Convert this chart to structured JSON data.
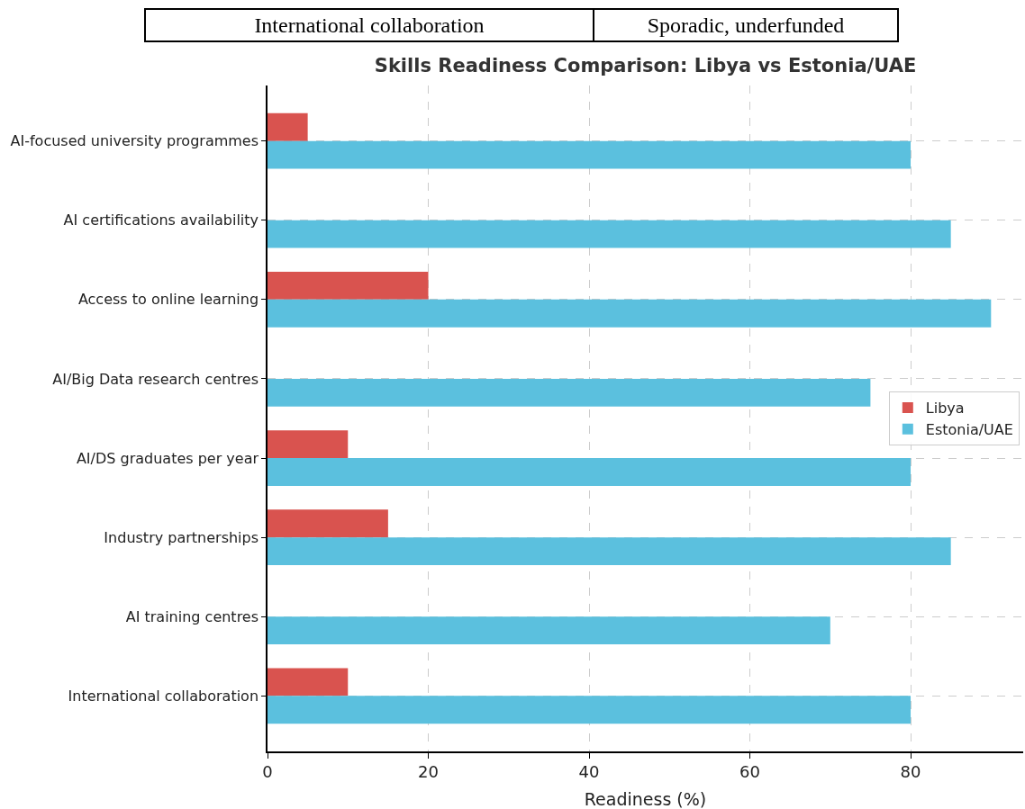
{
  "chart_data": {
    "type": "bar",
    "orientation": "horizontal",
    "title": "Skills Readiness Comparison: Libya vs Estonia/UAE",
    "xlabel": "Readiness (%)",
    "categories": [
      "AI-focused university programmes",
      "AI certifications availability",
      "Access to online learning",
      "AI/Big Data research centres",
      "AI/DS graduates per year",
      "Industry partnerships",
      "AI training centres",
      "International collaboration"
    ],
    "series": [
      {
        "name": "Libya",
        "color": "#d9534f",
        "values": [
          5,
          0,
          20,
          0,
          10,
          15,
          0,
          10
        ]
      },
      {
        "name": "Estonia/UAE",
        "color": "#5bc0de",
        "values": [
          80,
          85,
          90,
          75,
          80,
          85,
          70,
          80
        ]
      }
    ],
    "xlim": [
      0,
      94
    ],
    "xticks": [
      0,
      20,
      40,
      60,
      80
    ],
    "grid": true,
    "legend": "right",
    "annotations": [
      "International collaboration",
      "Sporadic, underfunded"
    ]
  }
}
